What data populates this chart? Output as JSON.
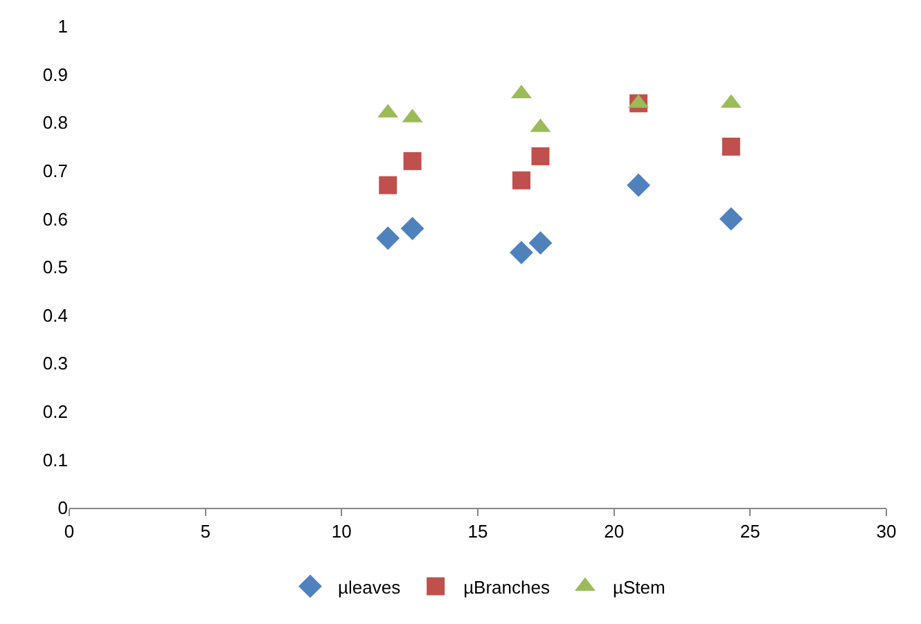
{
  "chart_data": {
    "type": "scatter",
    "x": [
      11.7,
      12.6,
      16.6,
      17.3,
      20.9,
      24.3
    ],
    "series": [
      {
        "name": "µleaves",
        "color": "#4f81bd",
        "marker": "diamond",
        "values": [
          0.56,
          0.58,
          0.53,
          0.55,
          0.67,
          0.6
        ]
      },
      {
        "name": "µBranches",
        "color": "#c0504d",
        "marker": "square",
        "values": [
          0.67,
          0.72,
          0.68,
          0.73,
          0.84,
          0.75
        ]
      },
      {
        "name": "µStem",
        "color": "#9bbb59",
        "marker": "triangle",
        "values": [
          0.82,
          0.81,
          0.86,
          0.79,
          0.84,
          0.84
        ]
      }
    ],
    "xlim": [
      0,
      30
    ],
    "xticks": [
      0,
      5,
      10,
      15,
      20,
      25,
      30
    ],
    "ylim": [
      0,
      1
    ],
    "yticks": [
      0,
      0.1,
      0.2,
      0.3,
      0.4,
      0.5,
      0.6,
      0.7,
      0.8,
      0.9,
      1
    ],
    "legend": "bottom"
  }
}
